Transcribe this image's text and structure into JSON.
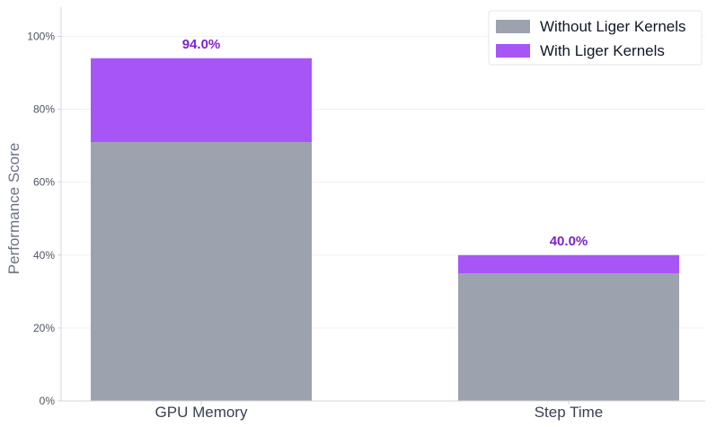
{
  "chart_data": {
    "type": "bar",
    "stacked": true,
    "categories": [
      "GPU Memory",
      "Step Time"
    ],
    "series": [
      {
        "name": "Without Liger Kernels",
        "values": [
          71,
          35
        ],
        "color": "#9ca3af"
      },
      {
        "name": "With Liger Kernels",
        "values": [
          23,
          5
        ],
        "color": "#a855f7"
      }
    ],
    "totals": [
      94.0,
      40.0
    ],
    "data_labels": [
      "94.0%",
      "40.0%"
    ],
    "data_label_color": "#7e22ce",
    "ylabel": "Performance Score",
    "ylim": [
      0,
      108
    ],
    "yticks": [
      0,
      20,
      40,
      60,
      80,
      100
    ],
    "ytick_labels": [
      "0%",
      "20%",
      "40%",
      "60%",
      "80%",
      "100%"
    ],
    "grid": true,
    "legend_position": "top-right"
  }
}
